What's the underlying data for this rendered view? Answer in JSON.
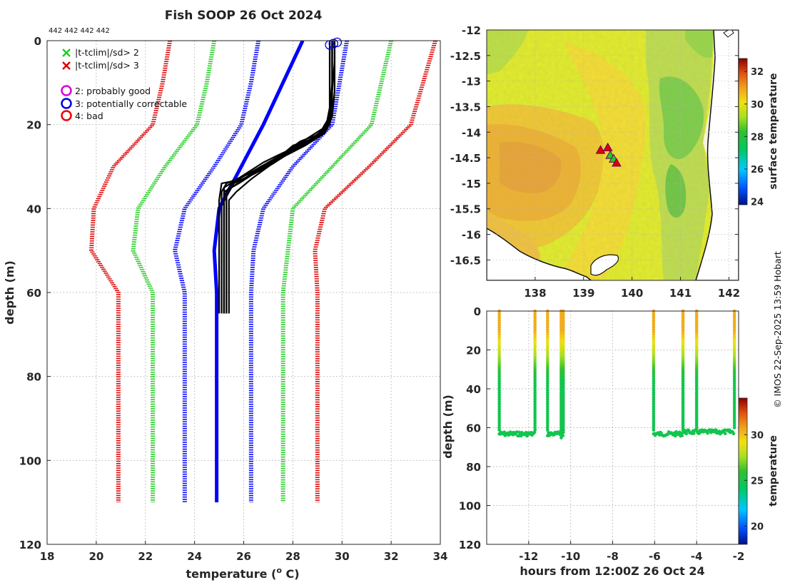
{
  "chart_data": [
    {
      "type": "line",
      "title": "Fish SOOP 26 Oct 2024",
      "subtitle": "442 442 442 442",
      "xlabel": "temperature (",
      "xlabel_sup": "o",
      "xlabel_unit": " C)",
      "ylabel": "depth (m)",
      "xlim": [
        18,
        34
      ],
      "ylim": [
        0,
        120
      ],
      "y_reversed": true,
      "grid": true,
      "x_ticks": [
        18,
        20,
        22,
        24,
        26,
        28,
        30,
        32,
        34
      ],
      "y_ticks": [
        0,
        20,
        40,
        60,
        80,
        100,
        120
      ],
      "legend": {
        "position": "top-left",
        "entries": [
          {
            "marker": "x",
            "color": "#22cc22",
            "label": "|t-tclim|/sd> 2"
          },
          {
            "marker": "x",
            "color": "#dd0000",
            "label": "|t-tclim|/sd> 3"
          },
          {
            "marker": "o",
            "color": "#dd00dd",
            "label": "2: probably good"
          },
          {
            "marker": "o",
            "color": "#0000dd",
            "label": "3: potentially correctable"
          },
          {
            "marker": "o",
            "color": "#ee0000",
            "label": "4: bad"
          }
        ]
      },
      "climatology_depths": [
        0,
        10,
        20,
        30,
        40,
        50,
        60,
        110
      ],
      "climatology": [
        {
          "name": "mean",
          "color": "#0000ff",
          "style": "solid",
          "values": [
            28.4,
            27.6,
            26.8,
            25.9,
            25.0,
            24.8,
            24.9,
            24.9
          ]
        },
        {
          "name": "mean-1sd",
          "color": "#0000ff",
          "style": "dotted",
          "values": [
            26.6,
            26.3,
            25.9,
            24.8,
            23.6,
            23.2,
            23.6,
            23.6
          ]
        },
        {
          "name": "mean+1sd",
          "color": "#0000ff",
          "style": "dotted",
          "values": [
            30.2,
            29.9,
            29.6,
            28.0,
            26.8,
            26.4,
            26.3,
            26.3
          ]
        },
        {
          "name": "mean-2sd",
          "color": "#22cc22",
          "style": "dotted",
          "values": [
            24.8,
            24.5,
            24.1,
            22.8,
            21.7,
            21.5,
            22.3,
            22.3
          ]
        },
        {
          "name": "mean+2sd",
          "color": "#22cc22",
          "style": "dotted",
          "values": [
            32.0,
            31.6,
            31.2,
            29.6,
            28.0,
            27.8,
            27.6,
            27.6
          ]
        },
        {
          "name": "mean-3sd",
          "color": "#dd0000",
          "style": "dotted",
          "values": [
            23.0,
            22.7,
            22.3,
            20.7,
            19.9,
            19.8,
            20.9,
            20.9
          ]
        },
        {
          "name": "mean+3sd",
          "color": "#dd0000",
          "style": "dotted",
          "values": [
            33.8,
            33.3,
            32.8,
            31.1,
            29.3,
            28.9,
            29.0,
            29.0
          ]
        }
      ],
      "profiles": {
        "color": "#000000",
        "series": [
          {
            "depth": [
              0,
              5,
              10,
              16,
              19,
              22,
              24,
              27,
              30,
              33,
              34,
              38,
              45,
              55,
              65
            ],
            "temp": [
              29.5,
              29.5,
              29.5,
              29.5,
              29.4,
              29.2,
              28.3,
              27.6,
              27.0,
              26.0,
              25.1,
              25.0,
              25.0,
              25.0,
              25.0
            ]
          },
          {
            "depth": [
              0,
              5,
              10,
              16,
              20,
              23,
              25,
              27,
              31,
              34,
              36,
              40,
              50,
              60,
              65
            ],
            "temp": [
              29.6,
              29.6,
              29.6,
              29.6,
              29.5,
              29.0,
              28.0,
              27.6,
              26.5,
              25.3,
              25.1,
              25.1,
              25.1,
              25.1,
              25.1
            ]
          },
          {
            "depth": [
              0,
              5,
              12,
              18,
              21,
              24,
              27,
              29,
              32,
              35,
              38,
              42,
              50,
              60,
              65
            ],
            "temp": [
              29.6,
              29.6,
              29.6,
              29.5,
              29.3,
              28.6,
              27.5,
              26.8,
              26.0,
              25.2,
              25.2,
              25.2,
              25.2,
              25.2,
              25.2
            ]
          },
          {
            "depth": [
              0,
              5,
              12,
              17,
              20,
              23,
              25,
              28,
              31,
              34,
              37,
              41,
              50,
              60,
              65
            ],
            "temp": [
              29.7,
              29.7,
              29.6,
              29.6,
              29.4,
              28.9,
              28.2,
              27.3,
              26.4,
              25.5,
              25.2,
              25.2,
              25.2,
              25.2,
              25.2
            ]
          },
          {
            "depth": [
              0,
              5,
              12,
              18,
              22,
              25,
              28,
              30,
              33,
              35,
              37,
              40,
              50,
              60,
              65
            ],
            "temp": [
              29.7,
              29.7,
              29.7,
              29.6,
              29.3,
              28.3,
              27.4,
              26.7,
              26.0,
              25.5,
              25.3,
              25.3,
              25.3,
              25.3,
              25.3
            ]
          },
          {
            "depth": [
              0,
              5,
              10,
              17,
              21,
              24,
              27,
              30,
              33,
              36,
              38,
              43,
              50,
              60,
              65
            ],
            "temp": [
              29.6,
              29.6,
              29.6,
              29.5,
              29.4,
              28.7,
              27.8,
              27.0,
              26.3,
              25.7,
              25.4,
              25.4,
              25.4,
              25.4,
              25.4
            ]
          },
          {
            "depth": [
              0,
              5,
              10,
              16,
              19,
              22,
              25,
              28,
              31,
              34,
              36,
              40,
              50,
              60,
              65
            ],
            "temp": [
              29.5,
              29.5,
              29.5,
              29.5,
              29.4,
              29.3,
              28.5,
              27.5,
              26.6,
              25.8,
              25.2,
              25.2,
              25.2,
              25.2,
              25.2
            ]
          },
          {
            "depth": [
              0,
              5,
              12,
              18,
              21,
              24,
              26,
              29,
              32,
              34,
              37,
              41,
              50,
              60,
              65
            ],
            "temp": [
              29.6,
              29.6,
              29.6,
              29.5,
              29.2,
              28.4,
              27.9,
              27.1,
              26.3,
              25.6,
              25.3,
              25.3,
              25.3,
              25.3,
              25.3
            ]
          }
        ]
      },
      "surface_flags": [
        {
          "temp": 29.5,
          "depth": 1,
          "color": "#0000dd"
        },
        {
          "temp": 29.65,
          "depth": 0.7,
          "color": "#0000dd"
        },
        {
          "temp": 29.8,
          "depth": 0.4,
          "color": "#0000dd"
        }
      ]
    },
    {
      "type": "heatmap",
      "name": "surface temperature map",
      "xlim": [
        137,
        142.2
      ],
      "ylim": [
        -16.9,
        -12
      ],
      "x_ticks": [
        138,
        139,
        140,
        141,
        142
      ],
      "y_ticks": [
        -12,
        -12.5,
        -13,
        -13.5,
        -14,
        -14.5,
        -15,
        -15.5,
        -16,
        -16.5
      ],
      "colorbar": {
        "label": "surface temperature",
        "range": [
          23.8,
          32.8
        ],
        "ticks": [
          24,
          26,
          28,
          30,
          32
        ]
      },
      "triangles": [
        {
          "lon": 139.35,
          "lat": -14.35,
          "color": "#dd0000"
        },
        {
          "lon": 139.5,
          "lat": -14.3,
          "color": "#dd0000"
        },
        {
          "lon": 139.55,
          "lat": -14.45,
          "color": "#22cc22"
        },
        {
          "lon": 139.62,
          "lat": -14.52,
          "color": "#22cc22"
        },
        {
          "lon": 139.68,
          "lat": -14.6,
          "color": "#dd0000"
        }
      ]
    },
    {
      "type": "scatter",
      "name": "time-depth section",
      "xlabel": "hours from 12:00Z 26 Oct 24",
      "ylabel": "depth (m)",
      "xlim": [
        -14,
        -2
      ],
      "ylim": [
        0,
        120
      ],
      "y_reversed": true,
      "x_ticks": [
        -12,
        -10,
        -8,
        -6,
        -4,
        -2
      ],
      "y_ticks": [
        0,
        20,
        40,
        60,
        80,
        100,
        120
      ],
      "colorbar": {
        "label": "temperature",
        "range": [
          18,
          34
        ],
        "ticks": [
          20,
          25,
          30
        ]
      },
      "casts": [
        {
          "start": -13.4,
          "end": -11.7,
          "max_depth": 64
        },
        {
          "start": -11.1,
          "end": -10.45,
          "max_depth": 64
        },
        {
          "start": -10.45,
          "end": -10.35,
          "max_depth": 65
        },
        {
          "start": -6.05,
          "end": -4.65,
          "max_depth": 64
        },
        {
          "start": -4.65,
          "end": -4.0,
          "max_depth": 63
        },
        {
          "start": -4.0,
          "end": -2.2,
          "max_depth": 63
        }
      ]
    }
  ],
  "credit": "© IMOS 22-Sep-2025 13:59 Hobart"
}
